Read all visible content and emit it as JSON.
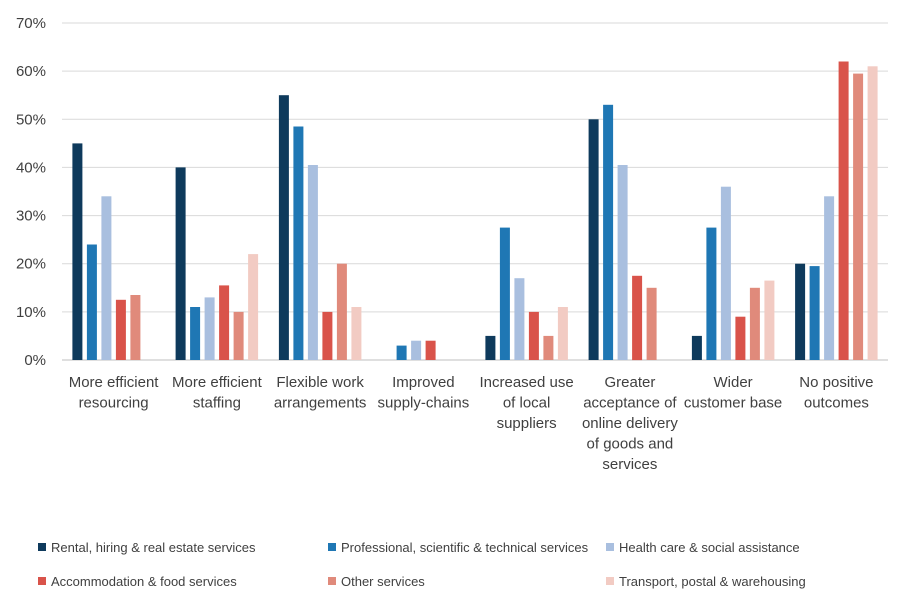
{
  "chart_data": {
    "type": "bar",
    "categories": [
      [
        "More efficient",
        "resourcing"
      ],
      [
        "More efficient",
        "staffing"
      ],
      [
        "Flexible work",
        "arrangements"
      ],
      [
        "Improved",
        "supply-chains"
      ],
      [
        "Increased use",
        "of local",
        "suppliers"
      ],
      [
        "Greater",
        "acceptance of",
        "online delivery",
        "of goods and",
        "services"
      ],
      [
        "Wider",
        "customer base"
      ],
      [
        "No positive",
        "outcomes"
      ]
    ],
    "series": [
      {
        "name": "Rental, hiring & real estate services",
        "color": "#0e3a5c",
        "values": [
          45,
          40,
          55,
          0,
          5,
          50,
          5,
          20
        ]
      },
      {
        "name": "Professional, scientific & technical services",
        "color": "#1f77b4",
        "values": [
          24,
          11,
          48.5,
          3,
          27.5,
          53,
          27.5,
          19.5
        ]
      },
      {
        "name": "Health care & social assistance",
        "color": "#a9bfdf",
        "values": [
          34,
          13,
          40.5,
          4,
          17,
          40.5,
          36,
          34
        ]
      },
      {
        "name": "Accommodation & food services",
        "color": "#d9534a",
        "values": [
          12.5,
          15.5,
          10,
          4,
          10,
          17.5,
          9,
          62
        ]
      },
      {
        "name": "Other services",
        "color": "#e08a7b",
        "values": [
          13.5,
          10,
          20,
          0,
          5,
          15,
          15,
          59.5
        ]
      },
      {
        "name": "Transport, postal & warehousing",
        "color": "#f2cbc3",
        "values": [
          0,
          22,
          11,
          0,
          11,
          0,
          16.5,
          61
        ]
      }
    ],
    "yticks": [
      "0%",
      "10%",
      "20%",
      "30%",
      "40%",
      "50%",
      "60%",
      "70%"
    ],
    "ylim": [
      0,
      70
    ],
    "grid": true,
    "legend_position": "bottom"
  }
}
